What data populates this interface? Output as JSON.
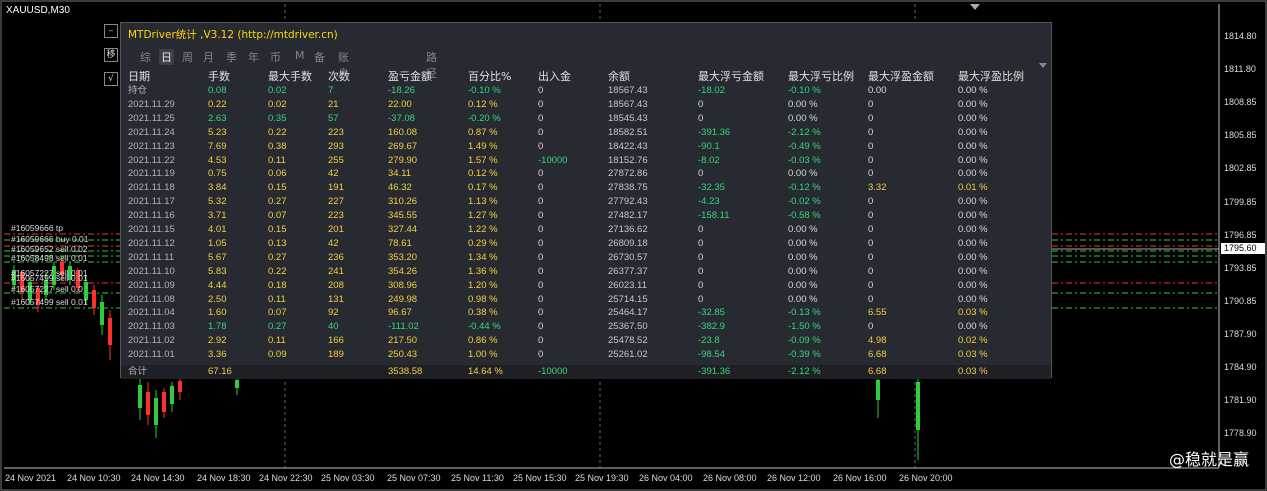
{
  "chart": {
    "symbol": "XAUUSD,M30",
    "current_price": "1795.60",
    "price_axis": [
      "1814.80",
      "1811.80",
      "1808.85",
      "1805.85",
      "1802.85",
      "1799.85",
      "1796.85",
      "1793.85",
      "1790.85",
      "1787.90",
      "1784.90",
      "1781.90",
      "1778.90"
    ],
    "time_axis": [
      "24 Nov 2021",
      "24 Nov 10:30",
      "24 Nov 14:30",
      "24 Nov 18:30",
      "24 Nov 22:30",
      "25 Nov 03:30",
      "25 Nov 07:30",
      "25 Nov 11:30",
      "25 Nov 15:30",
      "25 Nov 19:30",
      "26 Nov 04:00",
      "26 Nov 08:00",
      "26 Nov 12:00",
      "26 Nov 16:00",
      "26 Nov 20:00"
    ],
    "order_labels": [
      "#16059666 tp",
      "#16059666 buy 0.01",
      "#16059652 sell 0.02",
      "#16058498 sell 0.01",
      "#16057227 sell 0.01",
      "#16057499 sell 0.01",
      "#16057227 sell 0.0",
      "#16057499 sell 0.01"
    ]
  },
  "sidebar_buttons": [
    "–",
    "移",
    "√"
  ],
  "panel": {
    "title": "MTDriver统计 ,V3.12 (http://mtdriver.cn)",
    "tabs": [
      "综",
      "日",
      "周",
      "月",
      "季",
      "年",
      "币",
      "M",
      "备",
      "账户",
      "路径"
    ],
    "active_tab": "日",
    "headers": [
      "日期",
      "手数",
      "最大手数",
      "次数",
      "盈亏金额",
      "百分比%",
      "出入金",
      "余额",
      "最大浮亏金额",
      "最大浮亏比例",
      "最大浮盈金额",
      "最大浮盈比例"
    ],
    "rows": [
      [
        "持仓",
        "0.08",
        "0.02",
        "7",
        "-18.26",
        "-0.10 %",
        "0",
        "18567.43",
        "-18.02",
        "-0.10 %",
        "0.00",
        "0.00 %"
      ],
      [
        "2021.11.29",
        "0.22",
        "0.02",
        "21",
        "22.00",
        "0.12 %",
        "0",
        "18567.43",
        "0",
        "0.00 %",
        "0",
        "0.00 %"
      ],
      [
        "2021.11.25",
        "2.63",
        "0.35",
        "57",
        "-37.08",
        "-0.20 %",
        "0",
        "18545.43",
        "0",
        "0.00 %",
        "0",
        "0.00 %"
      ],
      [
        "2021.11.24",
        "5.23",
        "0.22",
        "223",
        "160.08",
        "0.87 %",
        "0",
        "18582.51",
        "-391.36",
        "-2.12 %",
        "0",
        "0.00 %"
      ],
      [
        "2021.11.23",
        "7.69",
        "0.38",
        "293",
        "269.67",
        "1.49 %",
        "0",
        "18422.43",
        "-90.1",
        "-0.49 %",
        "0",
        "0.00 %"
      ],
      [
        "2021.11.22",
        "4.53",
        "0.11",
        "255",
        "279.90",
        "1.57 %",
        "-10000",
        "18152.76",
        "-8.02",
        "-0.03 %",
        "0",
        "0.00 %"
      ],
      [
        "2021.11.19",
        "0.75",
        "0.06",
        "42",
        "34.11",
        "0.12 %",
        "0",
        "27872.86",
        "0",
        "0.00 %",
        "0",
        "0.00 %"
      ],
      [
        "2021.11.18",
        "3.84",
        "0.15",
        "191",
        "46.32",
        "0.17 %",
        "0",
        "27838.75",
        "-32.35",
        "-0.12 %",
        "3.32",
        "0.01 %"
      ],
      [
        "2021.11.17",
        "5.32",
        "0.27",
        "227",
        "310.26",
        "1.13 %",
        "0",
        "27792.43",
        "-4.23",
        "-0.02 %",
        "0",
        "0.00 %"
      ],
      [
        "2021.11.16",
        "3.71",
        "0.07",
        "223",
        "345.55",
        "1.27 %",
        "0",
        "27482.17",
        "-158.11",
        "-0.58 %",
        "0",
        "0.00 %"
      ],
      [
        "2021.11.15",
        "4.01",
        "0.15",
        "201",
        "327.44",
        "1.22 %",
        "0",
        "27136.62",
        "0",
        "0.00 %",
        "0",
        "0.00 %"
      ],
      [
        "2021.11.12",
        "1.05",
        "0.13",
        "42",
        "78.61",
        "0.29 %",
        "0",
        "26809.18",
        "0",
        "0.00 %",
        "0",
        "0.00 %"
      ],
      [
        "2021.11.11",
        "5.67",
        "0.27",
        "236",
        "353.20",
        "1.34 %",
        "0",
        "26730.57",
        "0",
        "0.00 %",
        "0",
        "0.00 %"
      ],
      [
        "2021.11.10",
        "5.83",
        "0.22",
        "241",
        "354.26",
        "1.36 %",
        "0",
        "26377.37",
        "0",
        "0.00 %",
        "0",
        "0.00 %"
      ],
      [
        "2021.11.09",
        "4.44",
        "0.18",
        "208",
        "308.96",
        "1.20 %",
        "0",
        "26023.11",
        "0",
        "0.00 %",
        "0",
        "0.00 %"
      ],
      [
        "2021.11.08",
        "2.50",
        "0.11",
        "131",
        "249.98",
        "0.98 %",
        "0",
        "25714.15",
        "0",
        "0.00 %",
        "0",
        "0.00 %"
      ],
      [
        "2021.11.04",
        "1.60",
        "0.07",
        "92",
        "96.67",
        "0.38 %",
        "0",
        "25464.17",
        "-32.85",
        "-0.13 %",
        "6.55",
        "0.03 %"
      ],
      [
        "2021.11.03",
        "1.78",
        "0.27",
        "40",
        "-111.02",
        "-0.44 %",
        "0",
        "25367.50",
        "-382.9",
        "-1.50 %",
        "0",
        "0.00 %"
      ],
      [
        "2021.11.02",
        "2.92",
        "0.11",
        "166",
        "217.50",
        "0.86 %",
        "0",
        "25478.52",
        "-23.8",
        "-0.09 %",
        "4.98",
        "0.02 %"
      ],
      [
        "2021.11.01",
        "3.36",
        "0.09",
        "189",
        "250.43",
        "1.00 %",
        "0",
        "25261.02",
        "-98.54",
        "-0.39 %",
        "6.68",
        "0.03 %"
      ]
    ],
    "total": [
      "合计",
      "67.16",
      "",
      "",
      "3538.58",
      "14.64 %",
      "-10000",
      "",
      "-391.36",
      "-2.12 %",
      "6.68",
      "0.03 %"
    ]
  },
  "watermark": "@稳就是赢",
  "colors": {
    "bg": "#000000",
    "panel": "#272a31",
    "gain": "#f4d03f",
    "loss": "#37d67a",
    "up_candle": "#2ecc40",
    "down_candle": "#ff3030"
  }
}
